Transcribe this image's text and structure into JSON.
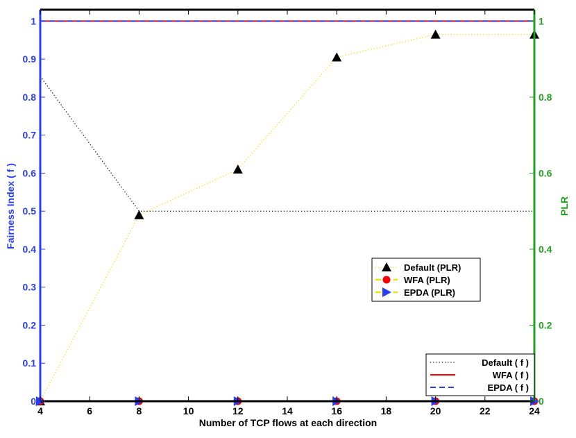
{
  "chart_data": {
    "type": "line",
    "x_label": "Number of TCP flows at each direction",
    "y_label_left": "Fairness Index ( f )",
    "y_label_right": "PLR",
    "x_ticks": [
      4,
      6,
      8,
      10,
      12,
      14,
      16,
      18,
      20,
      22,
      24
    ],
    "y_ticks_left": [
      "0",
      "0.1",
      "0.2",
      "0.3",
      "0.4",
      "0.5",
      "0.6",
      "0.7",
      "0.8",
      "0.9",
      "1"
    ],
    "y_ticks_right": [
      "0",
      "0.2",
      "0.4",
      "0.6",
      "0.8",
      "1"
    ],
    "xlim": [
      4,
      24
    ],
    "ylim_left": [
      0,
      1.03
    ],
    "ylim_right": [
      0,
      1.03
    ],
    "grid": false,
    "x": [
      4,
      8,
      12,
      16,
      20,
      24
    ],
    "series_plr": [
      {
        "name": "Default (PLR)",
        "values": [
          0.0,
          0.49,
          0.61,
          0.905,
          0.965,
          0.965
        ],
        "color": "#e6e600",
        "marker": "triangle",
        "marker_color": "#000000",
        "line": "dotted"
      },
      {
        "name": "WFA (PLR)",
        "values": [
          0,
          0,
          0,
          0,
          0,
          0
        ],
        "color": "#e6e600",
        "marker": "circle",
        "marker_color": "#ff0000",
        "line": "dashed"
      },
      {
        "name": "EPDA (PLR)",
        "values": [
          0,
          0,
          0,
          0,
          0,
          0
        ],
        "color": "#e6e600",
        "marker": "triangle-right",
        "marker_color": "#2a3ff5",
        "line": "dashed"
      }
    ],
    "series_f": [
      {
        "name": "Default ( f )",
        "values": [
          0.855,
          0.5,
          0.5,
          0.5,
          0.5,
          0.5
        ],
        "color": "#000000",
        "line": "dotted"
      },
      {
        "name": "WFA ( f )",
        "values": [
          1,
          1,
          1,
          1,
          1,
          1
        ],
        "color": "#ff0000",
        "line": "solid"
      },
      {
        "name": "EPDA ( f )",
        "values": [
          1,
          1,
          1,
          1,
          1,
          1
        ],
        "color": "#2a3ff5",
        "line": "dashed"
      }
    ],
    "legend_plr_placement": "center-right",
    "legend_f_placement": "bottom-right",
    "colors": {
      "left_axis": "#2a3ff5",
      "right_axis": "#22a022",
      "axis": "#000000"
    }
  }
}
